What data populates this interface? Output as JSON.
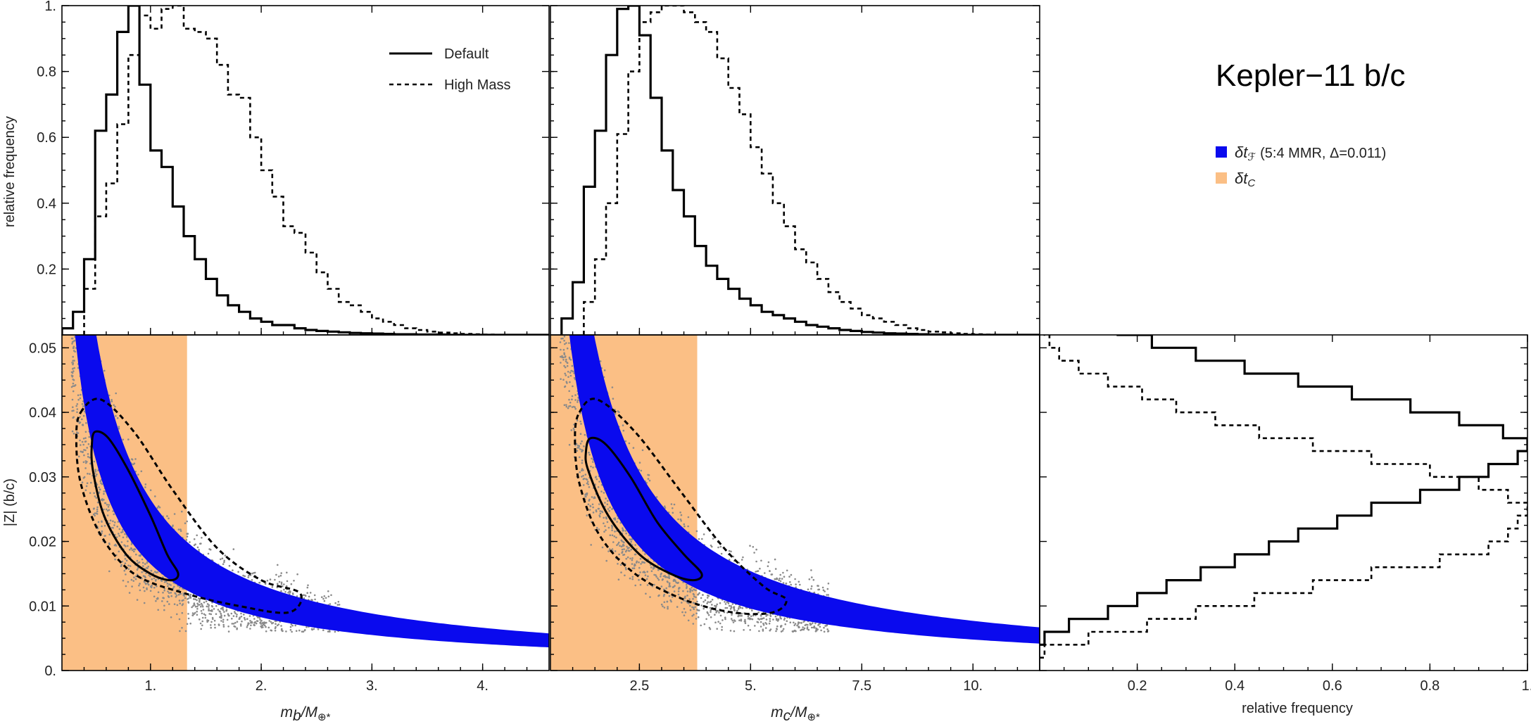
{
  "title": "Kepler−11 b/c",
  "legend": {
    "default_label": "Default",
    "highmass_label": "High Mass",
    "blue_label": "(5:4 MMR, Δ=0.011)",
    "blue_symbol_main": "δt",
    "blue_symbol_sub": "ℱ",
    "orange_symbol_main": "δt",
    "orange_symbol_sub": "C"
  },
  "labels": {
    "relfreq": "relative frequency",
    "zlabel": "|Z| (b/c)",
    "mb_m": "m",
    "mb_sub": "b",
    "mb_rest": "/M",
    "mb_earth": "⊕*",
    "mc_m": "m",
    "mc_sub": "c",
    "mc_rest": "/M",
    "mc_earth": "⊕*",
    "relfreq_bottom": "relative frequency"
  },
  "colors": {
    "blue_band": "#0a0aee",
    "orange_region": "#fbbf85",
    "scatter_gray": "#8a8a8a",
    "line": "#000000"
  },
  "chart_data": [
    {
      "type": "histogram",
      "panel": "mb",
      "ylabel": "relative frequency",
      "xlim": [
        0.2,
        4.6
      ],
      "ylim": [
        0,
        1.0
      ],
      "yticks": [
        "1.",
        "0.8",
        "0.6",
        "0.4",
        "0.2"
      ],
      "yticks_values": [
        1.0,
        0.8,
        0.6,
        0.4,
        0.2
      ],
      "bin_width": 0.1,
      "series": [
        {
          "name": "Default",
          "start": 0.2,
          "values": [
            0.02,
            0.07,
            0.23,
            0.62,
            0.73,
            0.92,
            1.0,
            0.76,
            0.56,
            0.51,
            0.39,
            0.3,
            0.23,
            0.17,
            0.12,
            0.09,
            0.07,
            0.05,
            0.04,
            0.03,
            0.03,
            0.02,
            0.015,
            0.012,
            0.01,
            0.008,
            0.006,
            0.005,
            0.004,
            0.003,
            0.002,
            0.002,
            0.001,
            0.001,
            0.001,
            0.0,
            0.0,
            0.0,
            0.0,
            0.0,
            0.0,
            0.0,
            0.0,
            0.0
          ]
        },
        {
          "name": "High Mass",
          "start": 0.4,
          "values": [
            0.14,
            0.36,
            0.46,
            0.64,
            0.85,
            0.97,
            0.93,
            0.99,
            1.0,
            0.93,
            0.92,
            0.9,
            0.82,
            0.73,
            0.72,
            0.6,
            0.5,
            0.42,
            0.33,
            0.31,
            0.25,
            0.19,
            0.14,
            0.1,
            0.09,
            0.07,
            0.05,
            0.04,
            0.03,
            0.02,
            0.015,
            0.01,
            0.007,
            0.005,
            0.003,
            0.002,
            0.001,
            0.0,
            0.0,
            0.0,
            0.0,
            0.0
          ]
        }
      ]
    },
    {
      "type": "histogram",
      "panel": "mc",
      "xlim": [
        0.5,
        11.5
      ],
      "ylim": [
        0,
        1.0
      ],
      "bin_width": 0.25,
      "series": [
        {
          "name": "Default",
          "start": 0.75,
          "values": [
            0.05,
            0.16,
            0.45,
            0.62,
            0.85,
            0.99,
            1.0,
            0.91,
            0.72,
            0.56,
            0.44,
            0.36,
            0.27,
            0.21,
            0.17,
            0.14,
            0.11,
            0.09,
            0.07,
            0.06,
            0.05,
            0.04,
            0.03,
            0.025,
            0.02,
            0.015,
            0.012,
            0.009,
            0.007,
            0.005,
            0.004,
            0.003,
            0.002,
            0.001,
            0.001,
            0.0,
            0.0,
            0.0,
            0.0,
            0.0,
            0.0,
            0.0,
            0.0
          ]
        },
        {
          "name": "High Mass",
          "start": 1.25,
          "values": [
            0.1,
            0.23,
            0.4,
            0.61,
            0.8,
            0.95,
            0.98,
            1.0,
            1.0,
            0.98,
            0.95,
            0.92,
            0.84,
            0.75,
            0.67,
            0.57,
            0.49,
            0.4,
            0.33,
            0.26,
            0.22,
            0.17,
            0.13,
            0.1,
            0.08,
            0.06,
            0.05,
            0.04,
            0.03,
            0.02,
            0.015,
            0.01,
            0.008,
            0.005,
            0.003,
            0.002,
            0.001,
            0.0,
            0.0,
            0.0,
            0.0,
            0.0
          ]
        }
      ]
    },
    {
      "type": "scatter",
      "panel": "mb-Z",
      "xlabel": "m_b/M_earth*",
      "ylabel": "|Z| (b/c)",
      "xlim": [
        0.2,
        4.6
      ],
      "ylim": [
        0,
        0.052
      ],
      "xticks": [
        "1.",
        "2.",
        "3.",
        "4."
      ],
      "xticks_values": [
        1,
        2,
        3,
        4
      ],
      "yticks": [
        "0.",
        "0.01",
        "0.02",
        "0.03",
        "0.04",
        "0.05"
      ],
      "yticks_values": [
        0,
        0.01,
        0.02,
        0.03,
        0.04,
        0.05
      ],
      "orange_region_x": [
        0.2,
        1.33
      ],
      "blue_band": {
        "k_low": 0.0165,
        "k_high": 0.0265,
        "power": -1.0
      },
      "contour_default": [
        [
          0.5,
          0.037
        ],
        [
          0.62,
          0.036
        ],
        [
          0.8,
          0.031
        ],
        [
          1.0,
          0.024
        ],
        [
          1.15,
          0.018
        ],
        [
          1.25,
          0.015
        ],
        [
          1.18,
          0.014
        ],
        [
          1.0,
          0.015
        ],
        [
          0.78,
          0.018
        ],
        [
          0.58,
          0.024
        ],
        [
          0.48,
          0.031
        ],
        [
          0.47,
          0.035
        ]
      ],
      "contour_highmass": [
        [
          0.37,
          0.04
        ],
        [
          0.55,
          0.042
        ],
        [
          0.85,
          0.037
        ],
        [
          1.2,
          0.028
        ],
        [
          1.6,
          0.019
        ],
        [
          2.0,
          0.014
        ],
        [
          2.35,
          0.012
        ],
        [
          2.25,
          0.009
        ],
        [
          1.8,
          0.01
        ],
        [
          1.3,
          0.012
        ],
        [
          0.85,
          0.015
        ],
        [
          0.55,
          0.021
        ],
        [
          0.37,
          0.029
        ],
        [
          0.33,
          0.036
        ]
      ]
    },
    {
      "type": "scatter",
      "panel": "mc-Z",
      "xlabel": "m_c/M_earth*",
      "xlim": [
        0.5,
        11.5
      ],
      "ylim": [
        0,
        0.052
      ],
      "xticks": [
        "2.5",
        "5.",
        "7.5",
        "10."
      ],
      "xticks_values": [
        2.5,
        5,
        7.5,
        10
      ],
      "orange_region_x": [
        0.5,
        3.8
      ],
      "blue_band": {
        "k_low": 0.048,
        "k_high": 0.077,
        "power": -1.0
      },
      "contour_default": [
        [
          1.4,
          0.036
        ],
        [
          1.75,
          0.035
        ],
        [
          2.3,
          0.03
        ],
        [
          2.9,
          0.023
        ],
        [
          3.5,
          0.018
        ],
        [
          3.9,
          0.015
        ],
        [
          3.7,
          0.014
        ],
        [
          3.2,
          0.015
        ],
        [
          2.5,
          0.018
        ],
        [
          1.8,
          0.024
        ],
        [
          1.35,
          0.031
        ],
        [
          1.3,
          0.034
        ]
      ],
      "contour_highmass": [
        [
          1.15,
          0.04
        ],
        [
          1.55,
          0.042
        ],
        [
          2.4,
          0.037
        ],
        [
          3.4,
          0.028
        ],
        [
          4.4,
          0.019
        ],
        [
          5.3,
          0.013
        ],
        [
          5.8,
          0.011
        ],
        [
          5.5,
          0.009
        ],
        [
          4.6,
          0.009
        ],
        [
          3.5,
          0.011
        ],
        [
          2.4,
          0.015
        ],
        [
          1.6,
          0.021
        ],
        [
          1.15,
          0.029
        ],
        [
          1.05,
          0.036
        ]
      ]
    },
    {
      "type": "histogram",
      "panel": "Z",
      "orientation": "horizontal",
      "xlabel": "relative frequency",
      "xlim": [
        0,
        1.0
      ],
      "ylim": [
        0,
        0.052
      ],
      "xticks": [
        "0.2",
        "0.4",
        "0.6",
        "0.8",
        "1."
      ],
      "xticks_values": [
        0.2,
        0.4,
        0.6,
        0.8,
        1.0
      ],
      "bin_width": 0.002,
      "series": [
        {
          "name": "Default",
          "start": 0.004,
          "values": [
            0.01,
            0.06,
            0.14,
            0.2,
            0.26,
            0.33,
            0.4,
            0.47,
            0.53,
            0.61,
            0.68,
            0.78,
            0.86,
            0.92,
            0.98,
            1.0,
            0.95,
            0.86,
            0.76,
            0.64,
            0.53,
            0.42,
            0.32,
            0.23,
            0.16,
            0.11,
            0.06,
            0.04,
            0.03,
            0.02,
            0.01,
            0.005,
            0.002,
            0.001,
            0.0,
            0.0,
            0.0,
            0.0,
            0.0,
            0.0,
            0.0,
            0.0,
            0.0,
            0.0
          ]
        },
        {
          "name": "High Mass",
          "start": 0.002,
          "values": [
            0.01,
            0.1,
            0.22,
            0.32,
            0.44,
            0.56,
            0.68,
            0.82,
            0.92,
            0.96,
            0.98,
            1.0,
            0.96,
            0.9,
            0.8,
            0.68,
            0.56,
            0.45,
            0.36,
            0.28,
            0.21,
            0.14,
            0.08,
            0.04,
            0.02,
            0.01,
            0.005,
            0.002,
            0.001,
            0.0,
            0.0,
            0.0,
            0.0,
            0.0,
            0.0,
            0.0,
            0.0,
            0.0,
            0.0,
            0.0,
            0.0,
            0.0,
            0.0,
            0.0,
            0.0
          ]
        }
      ]
    }
  ]
}
